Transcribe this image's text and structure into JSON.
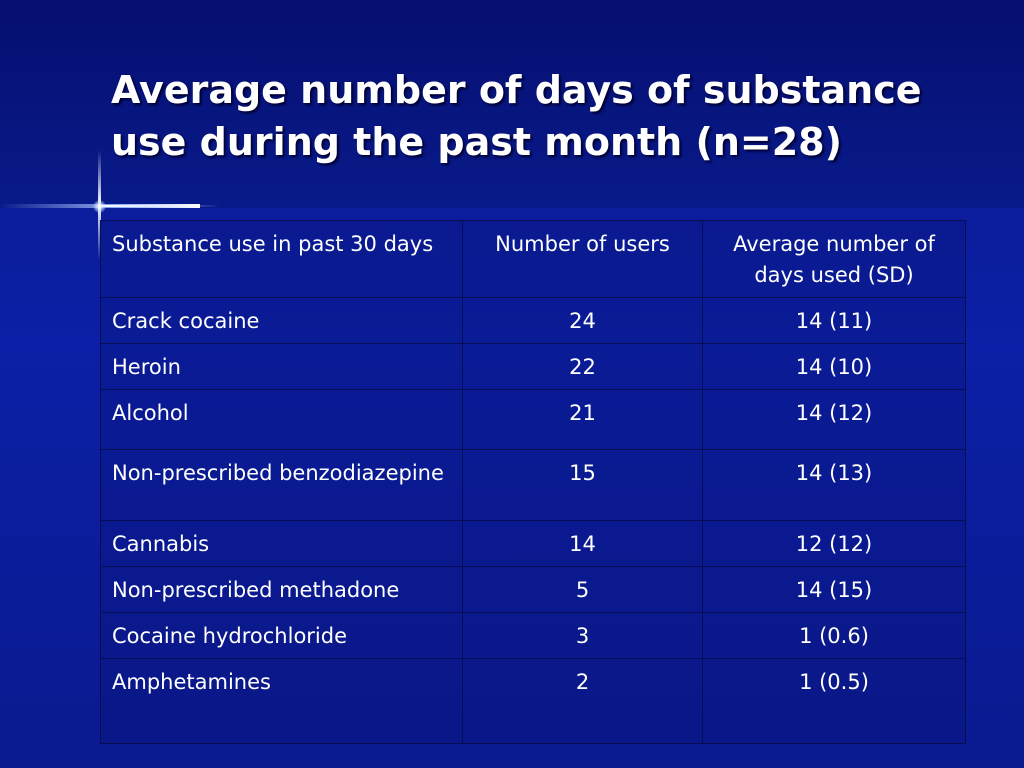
{
  "slide": {
    "title_line1": "Average number of days of substance",
    "title_line2": "use during the past month (n=28)"
  },
  "table": {
    "headers": [
      "Substance use in past 30 days",
      "Number of users",
      "Average number of days used (SD)"
    ],
    "rows": [
      {
        "substance": "Crack cocaine",
        "users": "24",
        "avg_days": "14 (11)"
      },
      {
        "substance": "Heroin",
        "users": "22",
        "avg_days": "14 (10)"
      },
      {
        "substance": "Alcohol",
        "users": "21",
        "avg_days": "14 (12)"
      },
      {
        "substance": "Non-prescribed benzodiazepine",
        "users": "15",
        "avg_days": "14 (13)"
      },
      {
        "substance": "Cannabis",
        "users": "14",
        "avg_days": "12 (12)"
      },
      {
        "substance": "Non-prescribed methadone",
        "users": "5",
        "avg_days": "14 (15)"
      },
      {
        "substance": "Cocaine hydrochloride",
        "users": "3",
        "avg_days": "1 (0.6)"
      },
      {
        "substance": "Amphetamines",
        "users": "2",
        "avg_days": "1 (0.5)"
      }
    ]
  },
  "colors": {
    "background": "#0c1fa6",
    "title_band": "#060f70",
    "text": "#ffffff",
    "grid_lines": "#050d55"
  }
}
